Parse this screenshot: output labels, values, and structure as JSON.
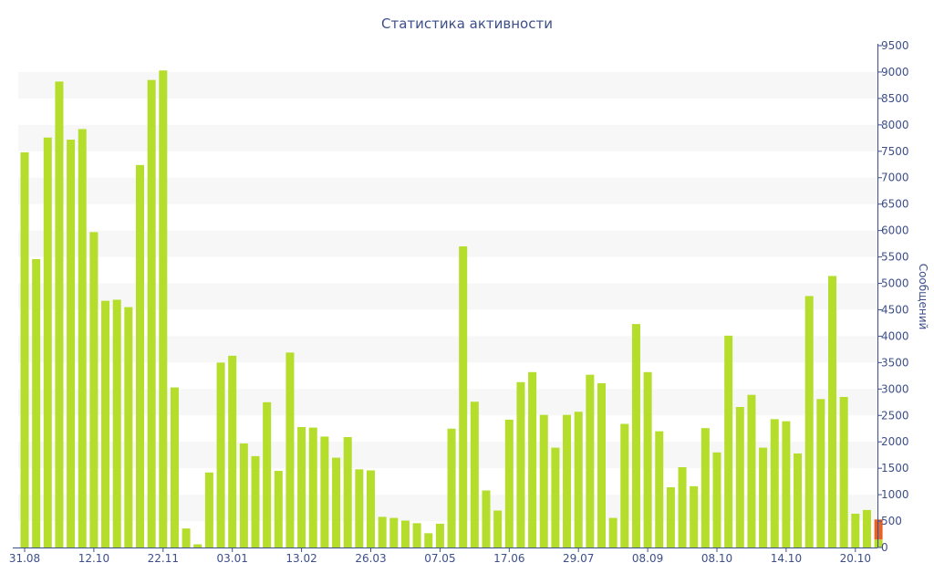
{
  "chart_data": {
    "type": "bar",
    "title": "Статистика активности",
    "ylabel": "Сообщений",
    "xlabel": "",
    "y_axis_side": "right",
    "ylim": [
      0,
      9500
    ],
    "ytick_step": 500,
    "bar_color": "#b5dd2c",
    "highlight_color": "#e5622a",
    "band_color": "#f7f7f7",
    "axis_color": "#3d4f8a",
    "x_ticks": [
      {
        "label": "31.08",
        "index": 0
      },
      {
        "label": "12.10",
        "index": 6
      },
      {
        "label": "22.11",
        "index": 12
      },
      {
        "label": "03.01",
        "index": 18
      },
      {
        "label": "13.02",
        "index": 24
      },
      {
        "label": "26.03",
        "index": 30
      },
      {
        "label": "07.05",
        "index": 36
      },
      {
        "label": "17.06",
        "index": 42
      },
      {
        "label": "29.07",
        "index": 48
      },
      {
        "label": "08.09",
        "index": 54
      },
      {
        "label": "08.10",
        "index": 60
      },
      {
        "label": "14.10",
        "index": 66
      },
      {
        "label": "20.10",
        "index": 72
      }
    ],
    "values": [
      7480,
      5460,
      7760,
      8820,
      7720,
      7920,
      5970,
      4670,
      4690,
      4550,
      7240,
      8850,
      9030,
      3030,
      360,
      60,
      1420,
      3500,
      3630,
      1970,
      1730,
      2750,
      1450,
      3690,
      2280,
      2270,
      2100,
      1700,
      2090,
      1480,
      1460,
      580,
      560,
      510,
      460,
      270,
      450,
      2250,
      5700,
      2760,
      1080,
      700,
      2420,
      3130,
      3320,
      2510,
      1890,
      2510,
      2570,
      3270,
      3110,
      560,
      2340,
      4230,
      3320,
      2200,
      1140,
      1520,
      1160,
      2260,
      1800,
      4010,
      2660,
      2890,
      1890,
      2430,
      2390,
      1780,
      4760,
      2810,
      5140,
      2850,
      640,
      710,
      530
    ],
    "highlight_last": {
      "total": 530,
      "current": 150
    }
  }
}
